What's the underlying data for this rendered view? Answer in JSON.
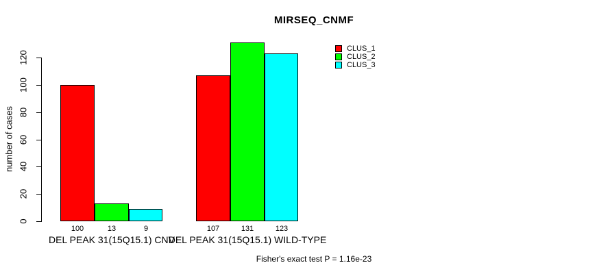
{
  "chart_data": {
    "type": "bar",
    "title": "MIRSEQ_CNMF",
    "xlabel": "",
    "ylabel": "number of cases",
    "ylim": [
      0,
      131
    ],
    "yticks": [
      0,
      20,
      40,
      60,
      80,
      100,
      120
    ],
    "grid": false,
    "legend_position": "top-right",
    "categories": [
      "DEL PEAK 31(15Q15.1) CNV",
      "DEL PEAK 31(15Q15.1) WILD-TYPE"
    ],
    "series": [
      {
        "name": "CLUS_1",
        "color": "#FF0000",
        "values": [
          100,
          107
        ]
      },
      {
        "name": "CLUS_2",
        "color": "#00FF00",
        "values": [
          13,
          131
        ]
      },
      {
        "name": "CLUS_3",
        "color": "#00FFFF",
        "values": [
          9,
          123
        ]
      }
    ],
    "show_values_below_bars": true,
    "annotation": "Fisher's exact test P = 1.16e-23",
    "axis_color": "#000000",
    "bar_border_color": "#000000"
  }
}
